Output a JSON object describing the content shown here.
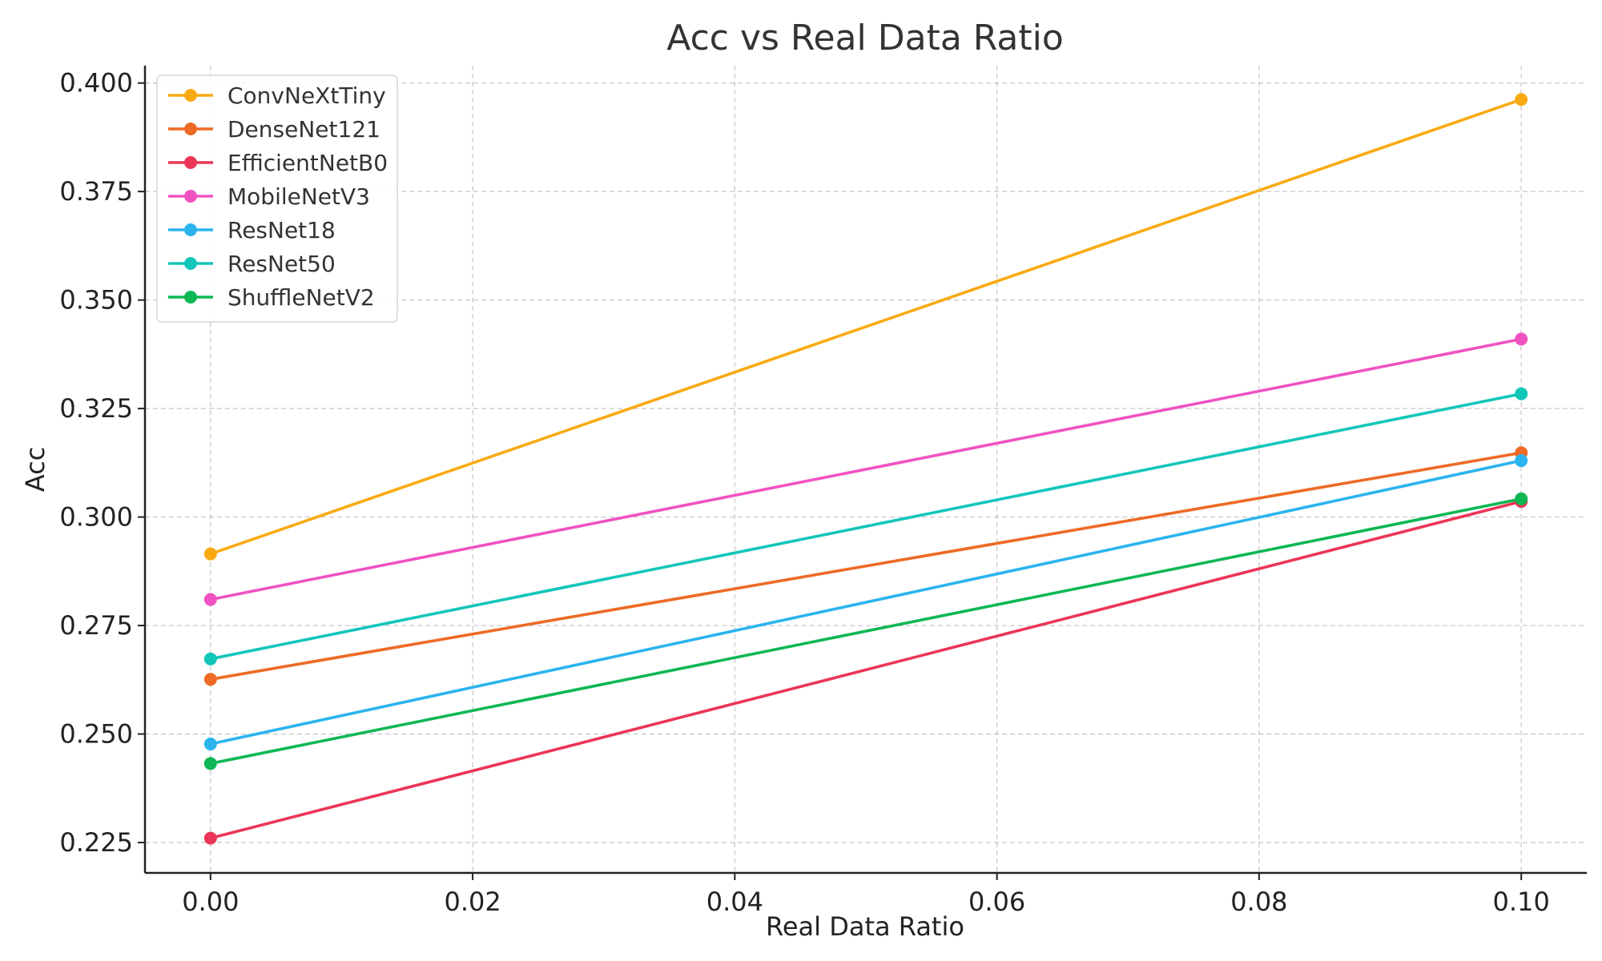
{
  "chart_data": {
    "type": "line",
    "title": "Acc vs Real Data Ratio",
    "xlabel": "Real Data Ratio",
    "ylabel": "Acc",
    "x": [
      0.0,
      0.1
    ],
    "xlim": [
      -0.005,
      0.105
    ],
    "ylim": [
      0.218,
      0.404
    ],
    "xticks": [
      0.0,
      0.02,
      0.04,
      0.06,
      0.08,
      0.1
    ],
    "xtick_labels": [
      "0.00",
      "0.02",
      "0.04",
      "0.06",
      "0.08",
      "0.10"
    ],
    "yticks": [
      0.225,
      0.25,
      0.275,
      0.3,
      0.325,
      0.35,
      0.375,
      0.4
    ],
    "ytick_labels": [
      "0.225",
      "0.250",
      "0.275",
      "0.300",
      "0.325",
      "0.350",
      "0.375",
      "0.400"
    ],
    "grid": true,
    "legend_position": "top-left",
    "series": [
      {
        "name": "ConvNeXtTiny",
        "color": "#F9AA12",
        "values": [
          0.2915,
          0.3962
        ]
      },
      {
        "name": "DenseNet121",
        "color": "#EE6A25",
        "values": [
          0.2626,
          0.3148
        ]
      },
      {
        "name": "EfficientNetB0",
        "color": "#EC3557",
        "values": [
          0.226,
          0.3036
        ]
      },
      {
        "name": "MobileNetV3",
        "color": "#F052C2",
        "values": [
          0.281,
          0.341
        ]
      },
      {
        "name": "ResNet18",
        "color": "#2BB4EE",
        "values": [
          0.2477,
          0.313
        ]
      },
      {
        "name": "ResNet50",
        "color": "#12C6BA",
        "values": [
          0.2673,
          0.3284
        ]
      },
      {
        "name": "ShuffleNetV2",
        "color": "#0EB754",
        "values": [
          0.2432,
          0.3042
        ]
      }
    ]
  }
}
